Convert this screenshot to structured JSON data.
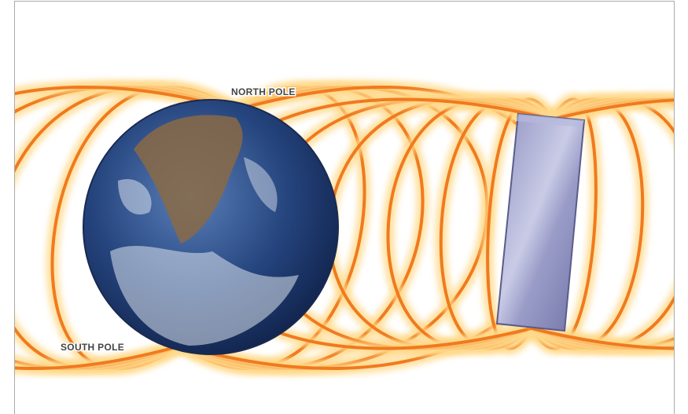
{
  "labels": {
    "north": "NORTH POLE",
    "south": "SOUTH POLE"
  }
}
